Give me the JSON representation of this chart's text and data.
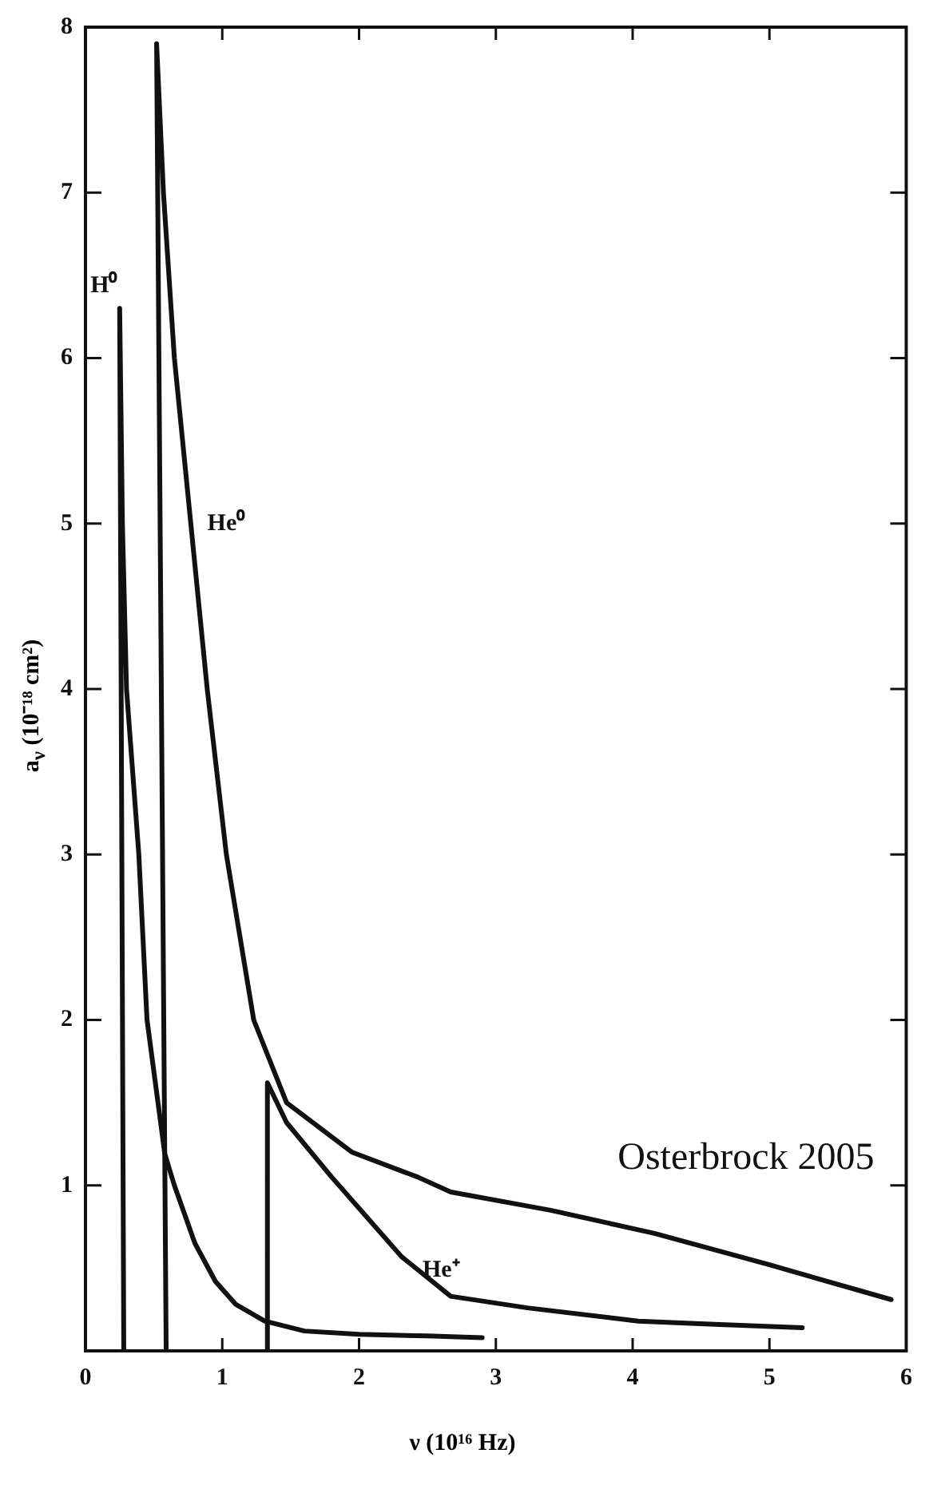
{
  "chart_data": {
    "type": "line",
    "xlabel": "ν (10¹⁶ Hz)",
    "ylabel": "a$_{ν}$ (10⁻¹⁸ cm²)",
    "xlim": [
      0,
      6
    ],
    "xticks": [
      0,
      1,
      2,
      3,
      4,
      5,
      6
    ],
    "ylim": [
      0,
      8
    ],
    "yticks": [
      {
        "value": 0,
        "label": null
      },
      1,
      2,
      3,
      4,
      5,
      6,
      7,
      8
    ],
    "grid": false,
    "legend": false,
    "marker": "none",
    "line_style": "solid",
    "series": [
      {
        "name": "H⁰",
        "color": "#111111",
        "x": [
          0.28,
          0.25,
          0.27,
          0.3,
          0.39,
          0.45,
          0.58,
          0.65,
          0.8,
          0.95,
          1.1,
          1.31,
          1.6,
          2.0,
          2.5,
          2.9
        ],
        "values": [
          0,
          6.3,
          5,
          4,
          3,
          2,
          1.19,
          1,
          0.65,
          0.42,
          0.28,
          0.18,
          0.12,
          0.1,
          0.09,
          0.08
        ]
      },
      {
        "name": "He⁰",
        "color": "#111111",
        "x": [
          0.59,
          0.52,
          0.57,
          0.65,
          0.77,
          0.89,
          1.03,
          1.23,
          1.47,
          1.95,
          2.43,
          2.67,
          3.4,
          4.16,
          5.0,
          5.89
        ],
        "values": [
          0,
          7.9,
          7,
          6,
          5,
          4,
          3,
          2,
          1.5,
          1.2,
          1.05,
          0.96,
          0.85,
          0.71,
          0.52,
          0.31
        ]
      },
      {
        "name": "He⁺",
        "color": "#111111",
        "x": [
          1.33,
          1.33,
          1.47,
          1.8,
          2.31,
          2.67,
          3.23,
          4.04,
          4.6,
          5.24
        ],
        "values": [
          0,
          1.62,
          1.38,
          1.05,
          0.57,
          0.33,
          0.26,
          0.18,
          0.16,
          0.14
        ]
      }
    ],
    "annotations": [
      "Osterbrock 2005"
    ]
  }
}
